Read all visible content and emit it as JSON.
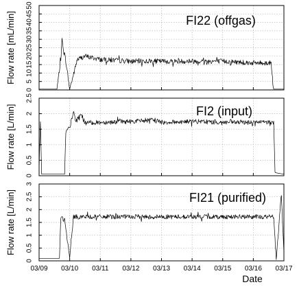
{
  "chart_data": [
    {
      "type": "line",
      "title": "FI22 (offgas)",
      "xlabel": "",
      "ylabel": "Flow rate [mL/min]",
      "xlim": [
        "03/09",
        "03/17"
      ],
      "ylim": [
        0,
        50
      ],
      "yticks": [
        0,
        5,
        10,
        15,
        20,
        25,
        30,
        35,
        40,
        45,
        50
      ],
      "grid": true,
      "series": [
        {
          "x": [
            "03/09 00:00",
            "03/09 14:00",
            "03/09 17:00",
            "03/09 18:00",
            "03/09 21:00",
            "03/10 00:00",
            "03/10 06:00",
            "03/10 12:00",
            "03/11 00:00",
            "03/12 00:00",
            "03/13 00:00",
            "03/14 00:00",
            "03/15 00:00",
            "03/16 00:00",
            "03/16 14:00",
            "03/16 16:00",
            "03/17 00:00"
          ],
          "y": [
            0.5,
            0.5,
            18,
            29,
            17,
            0.5,
            18,
            20,
            18,
            17,
            17,
            17,
            17,
            16,
            16,
            0.5,
            0.5
          ]
        }
      ]
    },
    {
      "type": "line",
      "title": "FI2 (input)",
      "xlabel": "",
      "ylabel": "Flow rate [L/min]",
      "xlim": [
        "03/09",
        "03/17"
      ],
      "ylim": [
        0,
        2.5
      ],
      "yticks": [
        0,
        0.5,
        1,
        1.5,
        2,
        2.5
      ],
      "grid": true,
      "series": [
        {
          "x": [
            "03/09 00:00",
            "03/09 01:00",
            "03/09 02:00",
            "03/09 20:00",
            "03/09 21:00",
            "03/10 00:00",
            "03/10 03:00",
            "03/10 05:00",
            "03/10 09:00",
            "03/10 12:00",
            "03/11 00:00",
            "03/12 00:00",
            "03/12 20:00",
            "03/13 00:00",
            "03/14 00:00",
            "03/15 00:00",
            "03/16 00:00",
            "03/16 16:00",
            "03/16 17:00",
            "03/17 00:00"
          ],
          "y": [
            0.1,
            1.8,
            0.05,
            0.05,
            1.4,
            1.55,
            2.05,
            1.75,
            2.0,
            1.7,
            1.72,
            1.75,
            1.8,
            1.72,
            1.75,
            1.72,
            1.72,
            1.72,
            0.1,
            0.05
          ]
        }
      ]
    },
    {
      "type": "line",
      "title": "FI21 (purified)",
      "xlabel": "Date",
      "ylabel": "Flow rate [L/min]",
      "xlim": [
        "03/09",
        "03/17"
      ],
      "ylim": [
        0,
        3
      ],
      "yticks": [
        0,
        0.5,
        1,
        1.5,
        2,
        2.5,
        3
      ],
      "grid": true,
      "series": [
        {
          "x": [
            "03/09 00:00",
            "03/09 16:00",
            "03/09 17:00",
            "03/09 20:00",
            "03/10 00:00",
            "03/10 03:00",
            "03/11 00:00",
            "03/12 00:00",
            "03/13 00:00",
            "03/14 00:00",
            "03/15 00:00",
            "03/16 00:00",
            "03/16 16:00",
            "03/16 18:00",
            "03/16 22:00",
            "03/17 00:00"
          ],
          "y": [
            0.1,
            0.1,
            1.7,
            1.6,
            0.1,
            1.72,
            1.72,
            1.72,
            1.72,
            1.72,
            1.72,
            1.72,
            1.72,
            0.05,
            2.6,
            0.3
          ]
        }
      ]
    }
  ],
  "x_ticks": [
    "03/09",
    "03/10",
    "03/11",
    "03/12",
    "03/13",
    "03/14",
    "03/15",
    "03/16",
    "03/17"
  ]
}
